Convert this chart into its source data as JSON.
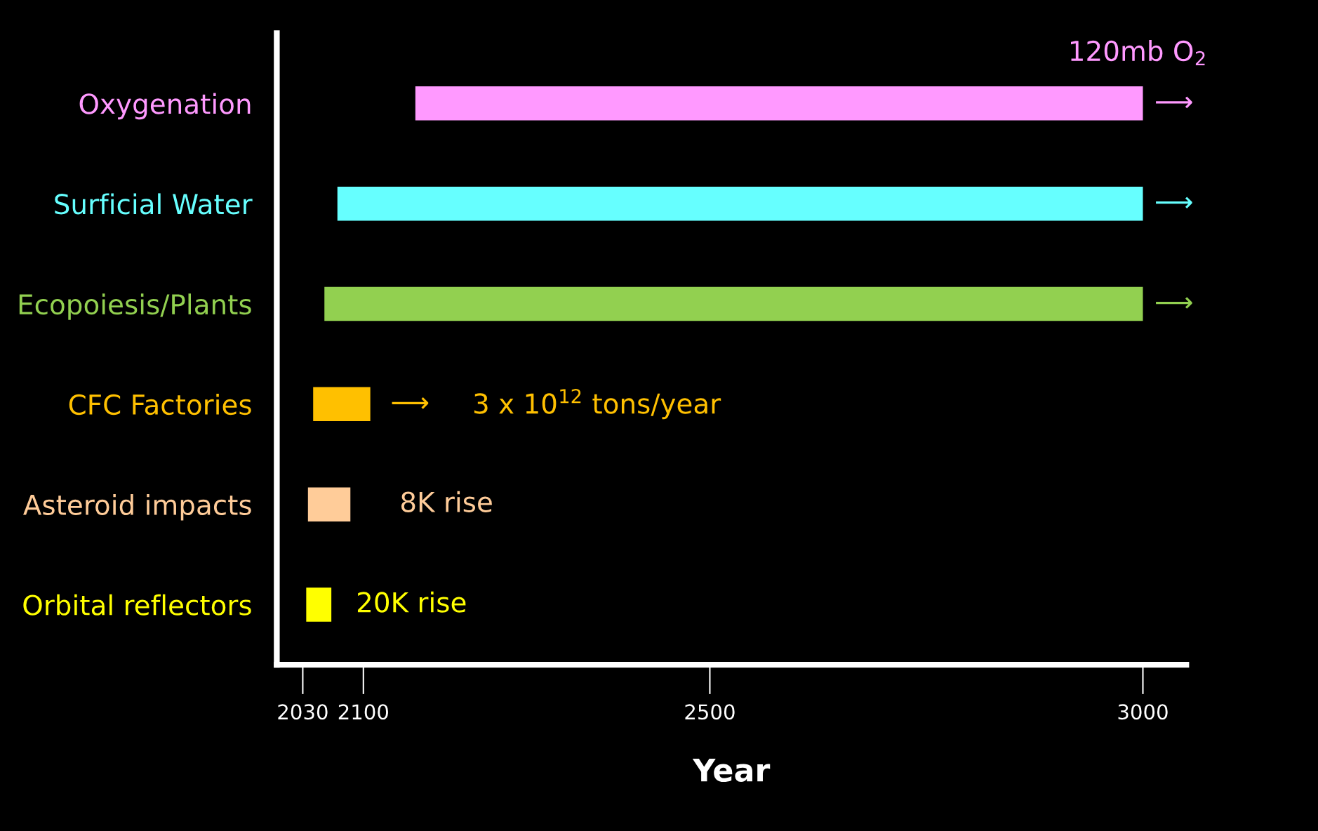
{
  "chart_data": {
    "type": "bar",
    "orientation": "horizontal",
    "xlabel": "Year",
    "categories": [
      "Oxygenation",
      "Surficial Water",
      "Ecopoiesis/Plants",
      "CFC Factories",
      "Asteroid impacts",
      "Orbital reflectors"
    ],
    "base": [
      2160,
      2070,
      2055,
      2042,
      2036,
      2034
    ],
    "values": [
      840,
      930,
      945,
      66,
      49,
      29
    ],
    "colors": [
      "#ff99ff",
      "#66ffff",
      "#92d050",
      "#ffc000",
      "#ffcc99",
      "#ffff00"
    ],
    "xlim": [
      2000,
      3050
    ],
    "xticks": [
      2030,
      2100,
      2500,
      3000
    ],
    "grid": false,
    "legend": false,
    "annotations": [
      "120mb O$_{2}$",
      "⟶",
      "⟶",
      "⟶",
      "⟶",
      "3 x 10$^{12}$ tons/year",
      "8K rise",
      "20K rise"
    ]
  }
}
